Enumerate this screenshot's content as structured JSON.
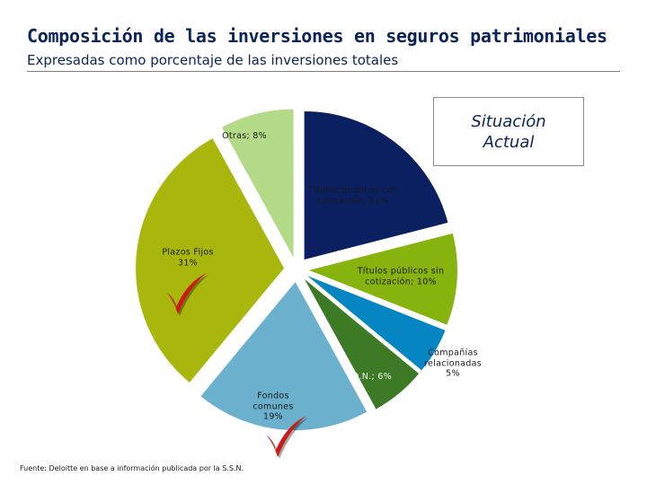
{
  "header": {
    "title": "Composición de las inversiones en seguros patrimoniales",
    "subtitle": "Expresadas como porcentaje de las inversiones totales"
  },
  "status_box": {
    "text": "Situación\nActual"
  },
  "chart_data": {
    "type": "pie",
    "exploded": true,
    "start_angle_deg_clockwise_from_top": 0,
    "slices": [
      {
        "name": "Títulos públicos con cotización",
        "label": "Títulos públicos con\ncotización; 21%",
        "value": 21,
        "color": "#0a2061",
        "checkmark": false
      },
      {
        "name": "Títulos públicos sin cotización",
        "label": "Títulos públicos sin\ncotización; 10%",
        "value": 10,
        "color": "#86b30d",
        "checkmark": false
      },
      {
        "name": "Compañías relacionadas",
        "label": "Compañías\nrelacionadas\n5%",
        "value": 5,
        "color": "#0585c2",
        "checkmark": false
      },
      {
        "name": "O.N.",
        "label": "O.N.; 6%",
        "value": 6,
        "color": "#3d7a26",
        "checkmark": false
      },
      {
        "name": "Fondos comunes",
        "label": "Fondos\ncomunes\n19%",
        "value": 19,
        "color": "#6bb1ce",
        "checkmark": true
      },
      {
        "name": "Plazos Fijos",
        "label": "Plazos Fijos\n31%",
        "value": 31,
        "color": "#a9b70d",
        "checkmark": true
      },
      {
        "name": "Otras",
        "label": "Otras; 8%",
        "value": 8,
        "color": "#b3da86",
        "checkmark": false
      }
    ]
  },
  "footer": {
    "source": "Fuente: Deloitte en base a información publicada por la S.S.N."
  },
  "colors": {
    "title": "#0b2358",
    "checkmark": "#cc1a1a"
  }
}
